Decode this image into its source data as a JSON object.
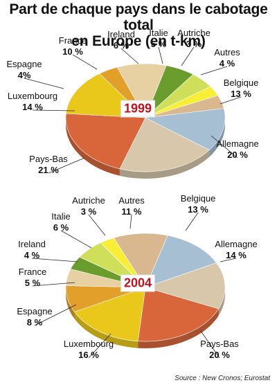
{
  "title_line1": "Part de chaque pays dans le cabotage total",
  "title_line2": "en Europe (en t-km)",
  "source": "Source : New Cronos; Eurostat",
  "chart_data": [
    {
      "type": "pie",
      "title": "1999",
      "categories": [
        "Belgique",
        "Allemagne",
        "Pays-Bas",
        "Luxembourg",
        "Espagne",
        "France",
        "Ireland",
        "Italie",
        "Autriche",
        "Autres"
      ],
      "values": [
        13,
        20,
        21,
        14,
        4,
        10,
        6,
        5,
        3,
        4
      ],
      "value_labels": [
        "13 %",
        "20 %",
        "21 %",
        "14 %",
        "4%",
        "10 %",
        "6 %",
        "5 %",
        "3 %",
        "4 %"
      ],
      "colors": [
        "#a6bfd3",
        "#d8c7aa",
        "#d9663b",
        "#eac81b",
        "#e2a02a",
        "#e7d1a2",
        "#6b9d2e",
        "#cfdf5a",
        "#f7ee35",
        "#d9b88f"
      ]
    },
    {
      "type": "pie",
      "title": "2004",
      "categories": [
        "Belgique",
        "Allemagne",
        "Pays-Bas",
        "Luxembourg",
        "Espagne",
        "France",
        "Ireland",
        "Italie",
        "Autriche",
        "Autres"
      ],
      "values": [
        13,
        14,
        20,
        16,
        8,
        5,
        4,
        6,
        3,
        11
      ],
      "value_labels": [
        "13 %",
        "14 %",
        "20 %",
        "16 %",
        "8 %",
        "5 %",
        "4 %",
        "6 %",
        "3 %",
        "11 %"
      ],
      "colors": [
        "#a6bfd3",
        "#d8c7aa",
        "#d9663b",
        "#eac81b",
        "#e2a02a",
        "#e7d1a2",
        "#6b9d2e",
        "#cfdf5a",
        "#f7ee35",
        "#d9b88f"
      ]
    }
  ]
}
